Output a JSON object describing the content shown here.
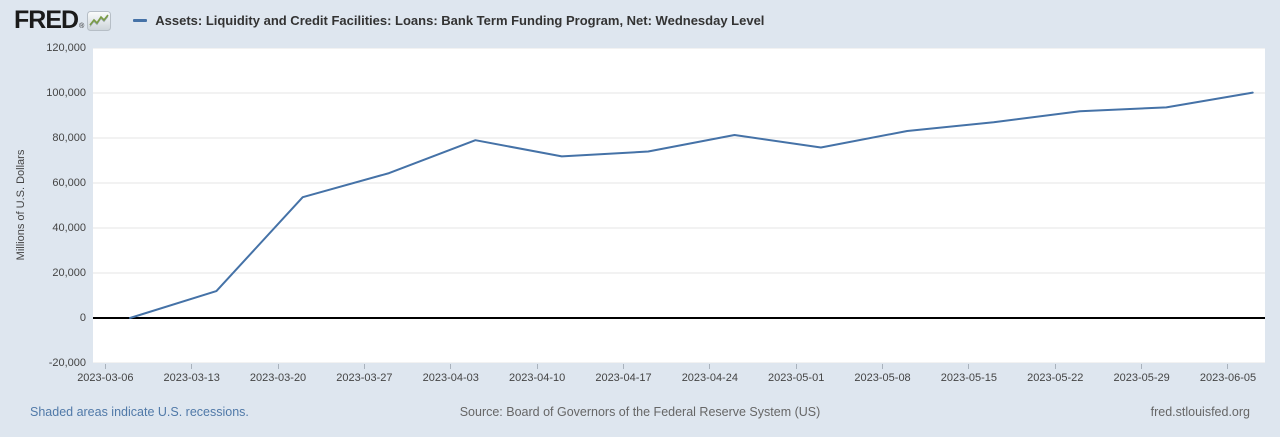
{
  "header": {
    "logo_text": "FRED",
    "logo_registered": "®",
    "series_title": "Assets: Liquidity and Credit Facilities: Loans: Bank Term Funding Program, Net: Wednesday Level"
  },
  "footer": {
    "recessions_note": "Shaded areas indicate U.S. recessions.",
    "source": "Source: Board of Governors of the Federal Reserve System (US)",
    "site": "fred.stlouisfed.org"
  },
  "colors": {
    "page_background": "#dee6ef",
    "plot_background": "#ffffff",
    "line": "#4572a7",
    "grid": "#e6e6e6",
    "zero_line": "#000000",
    "tick_text": "#444444",
    "footer_text": "#666666",
    "link": "#5079a8",
    "logo_green": "#7a9c44"
  },
  "chart_data": {
    "type": "line",
    "title": "Assets: Liquidity and Credit Facilities: Loans: Bank Term Funding Program, Net: Wednesday Level",
    "xlabel": "",
    "ylabel": "Millions of U.S. Dollars",
    "ylim": [
      -20000,
      120000
    ],
    "grid": "horizontal",
    "legend_position": "top",
    "line_color": "#4572a7",
    "x_domain": [
      "2023-03-05",
      "2023-06-08"
    ],
    "yticks": [
      {
        "value": 120000,
        "label": "120,000"
      },
      {
        "value": 100000,
        "label": "100,000"
      },
      {
        "value": 80000,
        "label": "80,000"
      },
      {
        "value": 60000,
        "label": "60,000"
      },
      {
        "value": 40000,
        "label": "40,000"
      },
      {
        "value": 20000,
        "label": "20,000"
      },
      {
        "value": 0,
        "label": "0"
      },
      {
        "value": -20000,
        "label": "-20,000"
      }
    ],
    "x_tick_dates": [
      "2023-03-06",
      "2023-03-13",
      "2023-03-20",
      "2023-03-27",
      "2023-04-03",
      "2023-04-10",
      "2023-04-17",
      "2023-04-24",
      "2023-05-01",
      "2023-05-08",
      "2023-05-15",
      "2023-05-22",
      "2023-05-29",
      "2023-06-05"
    ],
    "x": [
      "2023-03-08",
      "2023-03-15",
      "2023-03-22",
      "2023-03-29",
      "2023-04-05",
      "2023-04-12",
      "2023-04-19",
      "2023-04-26",
      "2023-05-03",
      "2023-05-10",
      "2023-05-17",
      "2023-05-24",
      "2023-05-31",
      "2023-06-07"
    ],
    "values": [
      0,
      11943,
      53669,
      64403,
      79021,
      71837,
      73982,
      81327,
      75778,
      83101,
      87006,
      91907,
      93615,
      100161
    ]
  }
}
